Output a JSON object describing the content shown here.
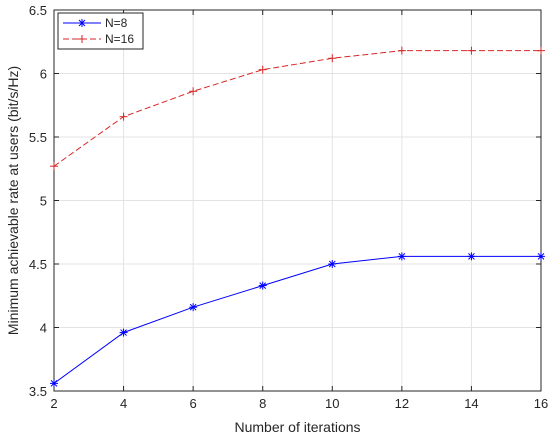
{
  "chart_data": {
    "type": "line",
    "title": "",
    "xlabel": "Number of iterations",
    "ylabel": "Minimum achievable rate at users (bit/s/Hz)",
    "x": [
      2,
      4,
      6,
      8,
      10,
      12,
      14,
      16
    ],
    "xlim": [
      2,
      16
    ],
    "ylim": [
      3.5,
      6.5
    ],
    "xticks": [
      "2",
      "4",
      "6",
      "8",
      "10",
      "12",
      "14",
      "16"
    ],
    "yticks": [
      "3.5",
      "4",
      "4.5",
      "5",
      "5.5",
      "6",
      "6.5"
    ],
    "grid": true,
    "legend_position": "top-left",
    "series": [
      {
        "name": "N=8",
        "color": "#0000ff",
        "line_style": "solid",
        "marker": "asterisk",
        "values": [
          3.56,
          3.96,
          4.16,
          4.33,
          4.5,
          4.56,
          4.56,
          4.56
        ]
      },
      {
        "name": "N=16",
        "color": "#d62728",
        "line_style": "dashed",
        "marker": "plus",
        "values": [
          5.27,
          5.66,
          5.86,
          6.03,
          6.12,
          6.18,
          6.18,
          6.18
        ]
      }
    ]
  }
}
